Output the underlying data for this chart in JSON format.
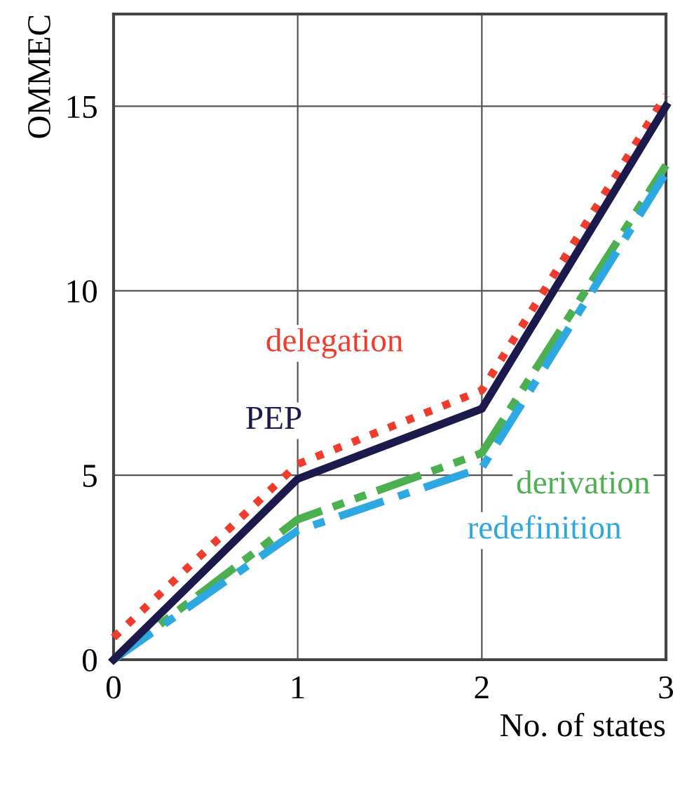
{
  "chart_data": {
    "type": "line",
    "xlabel": "No. of states",
    "ylabel": "OMMEC",
    "x": [
      0,
      1,
      2,
      3
    ],
    "series": [
      {
        "name": "delegation",
        "color": "#f03c2c",
        "values": [
          0.6,
          5.3,
          7.3,
          15.3
        ],
        "line_style": "dotted"
      },
      {
        "name": "PEP",
        "color": "#1c1a4c",
        "values": [
          0,
          4.9,
          6.8,
          15.0
        ],
        "line_style": "solid"
      },
      {
        "name": "derivation",
        "color": "#4caf50",
        "values": [
          0,
          3.8,
          5.6,
          13.4
        ],
        "line_style": "dashdotdot"
      },
      {
        "name": "redefinition",
        "color": "#2ea8e0",
        "values": [
          0,
          3.5,
          5.2,
          13.2
        ],
        "line_style": "dashdot"
      }
    ],
    "xlim": [
      0,
      3
    ],
    "ylim": [
      0,
      17.5
    ],
    "xticks": [
      0,
      1,
      2,
      3
    ],
    "yticks": [
      0,
      5,
      10,
      15
    ],
    "grid": true,
    "legend": false
  }
}
